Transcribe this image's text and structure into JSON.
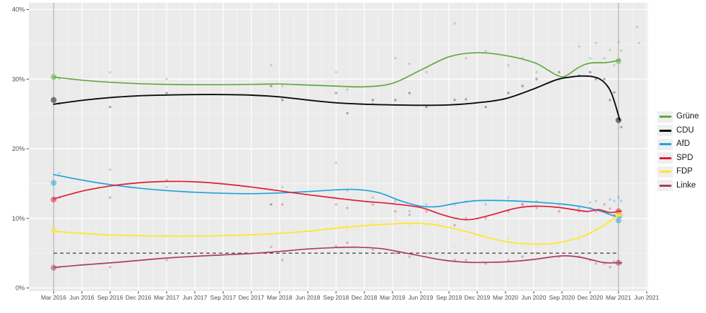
{
  "chart_data": {
    "type": "scatter",
    "subtype": "polls-with-loess-smooth-lines",
    "title": "",
    "xlabel": "",
    "ylabel": "",
    "x_ticks": [
      "Mar 2016",
      "Jun 2016",
      "Sep 2016",
      "Dec 2016",
      "Mar 2017",
      "Jun 2017",
      "Sep 2017",
      "Dec 2017",
      "Mar 2018",
      "Jun 2018",
      "Sep 2018",
      "Dec 2018",
      "Mar 2019",
      "Jun 2019",
      "Sep 2019",
      "Dec 2019",
      "Mar 2020",
      "Jun 2020",
      "Sep 2020",
      "Dec 2020",
      "Mar 2021",
      "Jun 2021"
    ],
    "y_ticks": {
      "labels": [
        "0%",
        "10%",
        "20%",
        "30%",
        "40%"
      ],
      "values": [
        0,
        10,
        20,
        30,
        40
      ]
    },
    "y_minor": [
      5,
      15,
      25,
      35
    ],
    "ylim": [
      0,
      41
    ],
    "grid": true,
    "panel_bg": "#ebebeb",
    "grid_major_color": "#ffffff",
    "grid_minor_color": "#f5f5f5",
    "threshold_line": {
      "value": 5,
      "style": "dashed",
      "color": "#3d3d3d",
      "from_t": 0,
      "to_t": 20
    },
    "election_vlines_t": [
      0,
      20
    ],
    "vline_color": "#a6a6a6",
    "legend_position": "right",
    "series": [
      {
        "name": "Grüne",
        "color": "#62a73e",
        "smooth": [
          [
            0,
            30.3
          ],
          [
            1,
            29.85
          ],
          [
            2,
            29.55
          ],
          [
            3,
            29.35
          ],
          [
            4,
            29.25
          ],
          [
            5,
            29.2
          ],
          [
            6,
            29.2
          ],
          [
            7,
            29.25
          ],
          [
            8,
            29.3
          ],
          [
            9,
            29.15
          ],
          [
            10,
            29.0
          ],
          [
            11,
            28.9
          ],
          [
            12,
            29.4
          ],
          [
            13,
            31.3
          ],
          [
            14,
            33.2
          ],
          [
            15,
            33.8
          ],
          [
            16,
            33.4
          ],
          [
            17,
            32.4
          ],
          [
            17.5,
            31.3
          ],
          [
            17.8,
            30.6
          ],
          [
            18.1,
            30.4
          ],
          [
            18.6,
            31.7
          ],
          [
            19,
            32.3
          ],
          [
            19.6,
            32.4
          ],
          [
            20.05,
            32.75
          ]
        ],
        "election_results": {
          "0": 30.3,
          "20": 32.6
        }
      },
      {
        "name": "CDU",
        "color": "#0a0a0a",
        "smooth": [
          [
            0,
            26.4
          ],
          [
            1,
            26.95
          ],
          [
            2,
            27.35
          ],
          [
            3,
            27.6
          ],
          [
            4,
            27.72
          ],
          [
            5,
            27.78
          ],
          [
            6,
            27.78
          ],
          [
            7,
            27.7
          ],
          [
            8,
            27.45
          ],
          [
            9,
            27.0
          ],
          [
            10,
            26.6
          ],
          [
            11,
            26.4
          ],
          [
            12,
            26.3
          ],
          [
            13,
            26.25
          ],
          [
            14,
            26.3
          ],
          [
            15,
            26.6
          ],
          [
            16,
            27.2
          ],
          [
            17,
            28.6
          ],
          [
            17.8,
            29.9
          ],
          [
            18.3,
            30.3
          ],
          [
            18.7,
            30.45
          ],
          [
            19.1,
            30.35
          ],
          [
            19.45,
            29.7
          ],
          [
            19.75,
            28.0
          ],
          [
            20.05,
            24.1
          ]
        ],
        "election_results": {
          "0": 27.0,
          "20": 24.1
        }
      },
      {
        "name": "AfD",
        "color": "#21a1dc",
        "smooth": [
          [
            0,
            16.3
          ],
          [
            1,
            15.5
          ],
          [
            2,
            14.85
          ],
          [
            3,
            14.35
          ],
          [
            4,
            14.0
          ],
          [
            5,
            13.75
          ],
          [
            6,
            13.6
          ],
          [
            7,
            13.55
          ],
          [
            8,
            13.65
          ],
          [
            9,
            13.85
          ],
          [
            10,
            14.1
          ],
          [
            10.7,
            14.15
          ],
          [
            11.5,
            13.7
          ],
          [
            12.3,
            12.5
          ],
          [
            13,
            11.75
          ],
          [
            13.6,
            11.7
          ],
          [
            14.3,
            12.2
          ],
          [
            15,
            12.55
          ],
          [
            16,
            12.55
          ],
          [
            17,
            12.35
          ],
          [
            18,
            12.05
          ],
          [
            18.8,
            11.6
          ],
          [
            19.4,
            11.0
          ],
          [
            19.8,
            10.4
          ],
          [
            20.1,
            10.15
          ]
        ],
        "election_results": {
          "0": 15.1,
          "20": 9.7
        }
      },
      {
        "name": "SPD",
        "color": "#dd1c33",
        "smooth": [
          [
            0,
            12.8
          ],
          [
            1,
            13.9
          ],
          [
            2,
            14.65
          ],
          [
            3,
            15.1
          ],
          [
            4,
            15.3
          ],
          [
            5,
            15.25
          ],
          [
            6,
            14.95
          ],
          [
            7,
            14.5
          ],
          [
            8,
            13.95
          ],
          [
            9,
            13.4
          ],
          [
            10,
            12.9
          ],
          [
            11,
            12.45
          ],
          [
            12,
            12.1
          ],
          [
            13,
            11.55
          ],
          [
            13.7,
            10.6
          ],
          [
            14.3,
            9.95
          ],
          [
            14.8,
            9.85
          ],
          [
            15.5,
            10.5
          ],
          [
            16.3,
            11.4
          ],
          [
            17,
            11.75
          ],
          [
            17.8,
            11.6
          ],
          [
            18.5,
            11.2
          ],
          [
            18.9,
            11.0
          ],
          [
            19.3,
            11.25
          ],
          [
            19.7,
            10.85
          ],
          [
            20.1,
            11.05
          ]
        ],
        "election_results": {
          "0": 12.7,
          "20": 11.0
        }
      },
      {
        "name": "FDP",
        "color": "#ffe720",
        "smooth": [
          [
            0,
            8.15
          ],
          [
            1,
            7.85
          ],
          [
            2,
            7.62
          ],
          [
            3,
            7.5
          ],
          [
            4,
            7.45
          ],
          [
            5,
            7.45
          ],
          [
            6,
            7.52
          ],
          [
            7,
            7.65
          ],
          [
            8,
            7.85
          ],
          [
            9,
            8.15
          ],
          [
            10,
            8.6
          ],
          [
            11,
            8.95
          ],
          [
            12,
            9.2
          ],
          [
            12.7,
            9.3
          ],
          [
            13.4,
            9.15
          ],
          [
            14,
            8.7
          ],
          [
            14.8,
            7.9
          ],
          [
            15.6,
            7.0
          ],
          [
            16.4,
            6.45
          ],
          [
            17.2,
            6.3
          ],
          [
            17.8,
            6.45
          ],
          [
            18.4,
            7.0
          ],
          [
            18.9,
            7.7
          ],
          [
            19.4,
            8.8
          ],
          [
            19.8,
            9.9
          ],
          [
            20.1,
            10.6
          ]
        ],
        "election_results": {
          "0": 8.3,
          "20": 10.5
        }
      },
      {
        "name": "Linke",
        "color": "#ad3a68",
        "smooth": [
          [
            0,
            2.95
          ],
          [
            1,
            3.3
          ],
          [
            2,
            3.6
          ],
          [
            3,
            3.95
          ],
          [
            4,
            4.3
          ],
          [
            5,
            4.55
          ],
          [
            6,
            4.75
          ],
          [
            7,
            4.95
          ],
          [
            8,
            5.25
          ],
          [
            9,
            5.6
          ],
          [
            10,
            5.8
          ],
          [
            10.8,
            5.85
          ],
          [
            11.6,
            5.65
          ],
          [
            12.3,
            5.15
          ],
          [
            13,
            4.6
          ],
          [
            13.8,
            4.0
          ],
          [
            14.6,
            3.7
          ],
          [
            15.4,
            3.68
          ],
          [
            16.2,
            3.8
          ],
          [
            17,
            4.1
          ],
          [
            17.7,
            4.5
          ],
          [
            18.1,
            4.62
          ],
          [
            18.6,
            4.45
          ],
          [
            19.1,
            4.0
          ],
          [
            19.5,
            3.65
          ],
          [
            20.1,
            3.6
          ]
        ],
        "election_results": {
          "0": 2.9,
          "20": 3.6
        }
      }
    ],
    "polls_columns": [
      "t",
      "Grüne",
      "CDU",
      "AfD",
      "SPD",
      "FDP",
      "Linke"
    ],
    "polls": [
      [
        0.2,
        30,
        26.5,
        16.5,
        13,
        8,
        3
      ],
      [
        2.0,
        31,
        26,
        17,
        13,
        7,
        3
      ],
      [
        4.0,
        30,
        28,
        14.5,
        15.5,
        7.5,
        4
      ],
      [
        7.7,
        32,
        29,
        12,
        12,
        7.5,
        5.9
      ],
      [
        8.1,
        29,
        27,
        14.5,
        12,
        8.5,
        4
      ],
      [
        10.0,
        31,
        28,
        18,
        12,
        9,
        6
      ],
      [
        10.4,
        28.5,
        25.1,
        14,
        11.5,
        8.5,
        6.5
      ],
      [
        11.3,
        26.5,
        27,
        13,
        12,
        9.5,
        5.5
      ],
      [
        12.1,
        33,
        27,
        12.5,
        11,
        10,
        5
      ],
      [
        12.6,
        32.2,
        28,
        11,
        10.5,
        9,
        4.5
      ],
      [
        13.2,
        31,
        26,
        12,
        11,
        9,
        5
      ],
      [
        14.2,
        38,
        27,
        12,
        9,
        6,
        4
      ],
      [
        14.6,
        33,
        27.1,
        12.4,
        10,
        7,
        4
      ],
      [
        15.3,
        34,
        26,
        12,
        10,
        8,
        3.5
      ],
      [
        16.1,
        32,
        28,
        13,
        11,
        7,
        4
      ],
      [
        16.6,
        33,
        29,
        12,
        12,
        6,
        4.5
      ],
      [
        17.1,
        31,
        30,
        12.5,
        11.5,
        6,
        5
      ],
      [
        17.9,
        30,
        31,
        12,
        11,
        6.5,
        4.5
      ],
      [
        18.6,
        34.7,
        30.5,
        11.5,
        11,
        7,
        4.5
      ],
      [
        19.0,
        33,
        31,
        12.3,
        11.5,
        8,
        4
      ],
      [
        19.2,
        35.2,
        30,
        12.5,
        11,
        8.5,
        3.5
      ],
      [
        19.5,
        33,
        30,
        11,
        12,
        9,
        3.5
      ],
      [
        19.7,
        34.2,
        27,
        12.7,
        11.4,
        9.5,
        3
      ],
      [
        19.85,
        32,
        28.1,
        12.5,
        10.5,
        10,
        3.8
      ],
      [
        20.0,
        35.3,
        24.3,
        13,
        11,
        11,
        3.9
      ],
      [
        20.1,
        34.1,
        23.1,
        12.5,
        10.5,
        10.8,
        3.6
      ],
      [
        20.65,
        37.5,
        null,
        null,
        null,
        null,
        null
      ],
      [
        20.72,
        35.2,
        null,
        null,
        null,
        null,
        null
      ]
    ]
  },
  "legend": {
    "items": [
      {
        "label": "Grüne"
      },
      {
        "label": "CDU"
      },
      {
        "label": "AfD"
      },
      {
        "label": "SPD"
      },
      {
        "label": "FDP"
      },
      {
        "label": "Linke"
      }
    ]
  }
}
